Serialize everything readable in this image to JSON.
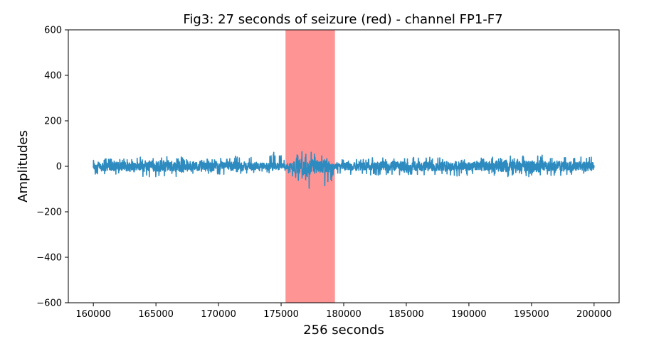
{
  "chart_data": {
    "type": "line",
    "title": "Fig3: 27 seconds of seizure (red) - channel FP1-F7",
    "xlabel": "256 seconds",
    "ylabel": "Amplitudes",
    "xlim": [
      158000,
      202000
    ],
    "ylim": [
      -600,
      600
    ],
    "xticks": [
      160000,
      165000,
      170000,
      175000,
      180000,
      185000,
      190000,
      195000,
      200000
    ],
    "xtick_labels": [
      "160000",
      "165000",
      "170000",
      "175000",
      "180000",
      "185000",
      "190000",
      "195000",
      "200000"
    ],
    "yticks": [
      -600,
      -400,
      -200,
      0,
      200,
      400,
      600
    ],
    "ytick_labels": [
      "−600",
      "−400",
      "−200",
      "0",
      "200",
      "400",
      "600"
    ],
    "grid": false,
    "series_color": "#2e8bc0",
    "seizure_region": {
      "x_start": 175350,
      "x_end": 179300,
      "color": "#ff6666"
    },
    "envelope": {
      "x": [
        160000,
        165000,
        170000,
        175000,
        175350,
        176000,
        177000,
        177500,
        178000,
        178500,
        179300,
        180000,
        185000,
        190000,
        195000,
        200000
      ],
      "upper": [
        40,
        55,
        45,
        70,
        20,
        60,
        95,
        80,
        65,
        70,
        25,
        40,
        50,
        45,
        60,
        55
      ],
      "lower": [
        -45,
        -60,
        -45,
        -35,
        -25,
        -60,
        -110,
        -150,
        -120,
        -130,
        -40,
        -45,
        -50,
        -55,
        -55,
        -45
      ]
    },
    "series": [
      {
        "x_start": 160000,
        "x_end": 200000
      }
    ]
  }
}
